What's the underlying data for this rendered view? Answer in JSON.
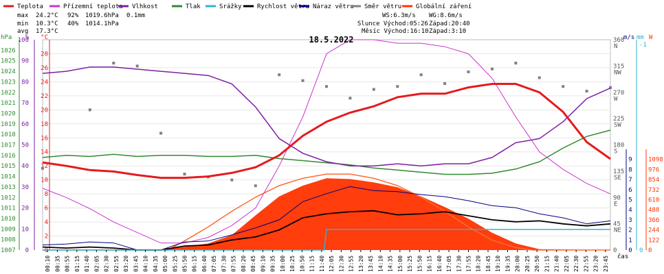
{
  "chart_data": {
    "type": "line",
    "title": "18.5.2022",
    "xlabel": "čas",
    "legend": [
      {
        "name": "Teplota",
        "color": "#e41a1c"
      },
      {
        "name": "Přízemní teplota",
        "color": "#cc33cc"
      },
      {
        "name": "Vlhkost",
        "color": "#7b1fa2"
      },
      {
        "name": "Tlak",
        "color": "#2e8b2e"
      },
      {
        "name": "Srážky",
        "color": "#2fb3d1"
      },
      {
        "name": "Rychlost větru",
        "color": "#000000"
      },
      {
        "name": "Náraz větru",
        "color": "#000080"
      },
      {
        "name": "Směr větru",
        "color": "#808080"
      },
      {
        "name": "Globální záření",
        "color": "#ff3300"
      }
    ],
    "stats": {
      "max": {
        "label": "max",
        "temp": "24.2°C",
        "hum": "92%",
        "press": "1019.6hPa",
        "rain": "0.1mm"
      },
      "min": {
        "label": "min",
        "temp": "10.3°C",
        "hum": "40%",
        "press": "1014.1hPa"
      },
      "avg": {
        "label": "avg",
        "temp": "17.3°C"
      }
    },
    "info": {
      "ws": "WS:6.3m/s",
      "wg": "WG:8.6m/s",
      "sun": "Slunce Východ:05:26",
      "sunset": "Západ:20:40",
      "moon": "Měsíc Východ:16:10",
      "moonset": "Západ:3:10"
    },
    "axes": {
      "press": {
        "label": "hPa",
        "ticks": [
          1007,
          1008,
          1009,
          1010,
          1011,
          1012,
          1013,
          1014,
          1015,
          1016,
          1017,
          1018,
          1019,
          1020,
          1021,
          1022,
          1023,
          1024,
          1025,
          1026
        ]
      },
      "hum": {
        "label": "%",
        "ticks": [
          0,
          10,
          20,
          30,
          40,
          50,
          60,
          70,
          80,
          90,
          100
        ]
      },
      "temp": {
        "label": "°C",
        "ticks": [
          0,
          2,
          4,
          6,
          8,
          10,
          12,
          14,
          16,
          18,
          20,
          22,
          24,
          26,
          28
        ]
      },
      "dir": {
        "ticks": [
          {
            "v": 0,
            "t": "0"
          },
          {
            "v": 45,
            "t": "45 NE"
          },
          {
            "v": 90,
            "t": "90 E"
          },
          {
            "v": 135,
            "t": "135 SE"
          },
          {
            "v": 180,
            "t": "180 S"
          },
          {
            "v": 225,
            "t": "225 SW"
          },
          {
            "v": 270,
            "t": "270 W"
          },
          {
            "v": 315,
            "t": "315 NW"
          },
          {
            "v": 360,
            "t": "360 N"
          }
        ]
      },
      "wind": {
        "label": "m/s",
        "ticks": [
          0,
          1,
          2,
          3,
          4,
          5,
          6,
          7,
          8,
          9
        ]
      },
      "rain": {
        "label": "mm",
        "ticks": [
          {
            "v": 0,
            "t": "0"
          },
          {
            "v": 1,
            "t": "-1"
          }
        ]
      },
      "rad": {
        "label": "W",
        "ticks": [
          0,
          122,
          244,
          366,
          488,
          610,
          732,
          854,
          976,
          1098
        ]
      }
    },
    "x_ticks": [
      "00:10",
      "00:35",
      "00:55",
      "01:15",
      "01:40",
      "02:05",
      "02:30",
      "02:55",
      "03:20",
      "03:45",
      "04:10",
      "04:35",
      "05:00",
      "05:25",
      "05:50",
      "06:15",
      "06:40",
      "07:05",
      "07:30",
      "07:55",
      "08:20",
      "08:45",
      "09:10",
      "09:35",
      "10:00",
      "10:25",
      "10:50",
      "11:15",
      "11:40",
      "12:05",
      "12:30",
      "12:55",
      "13:20",
      "13:45",
      "14:10",
      "14:35",
      "15:00",
      "15:25",
      "15:50",
      "16:15",
      "16:40",
      "17:05",
      "17:30",
      "17:55",
      "18:20",
      "18:45",
      "19:10",
      "19:35",
      "20:00",
      "20:25",
      "20:50",
      "21:15",
      "21:40",
      "22:05",
      "22:30",
      "22:55",
      "23:20",
      "23:45"
    ],
    "series": {
      "temp": {
        "x": [
          0,
          1,
          2,
          3,
          4,
          5,
          6,
          7,
          8,
          9,
          10,
          11,
          12,
          13,
          14,
          15,
          16,
          17,
          18,
          19,
          20,
          21,
          22,
          23,
          24
        ],
        "y": [
          12.5,
          12.0,
          11.4,
          11.2,
          10.7,
          10.3,
          10.3,
          10.5,
          11.0,
          11.8,
          13.5,
          16.3,
          18.3,
          19.6,
          20.5,
          21.8,
          22.3,
          22.3,
          23.2,
          23.7,
          23.7,
          22.5,
          19.7,
          15.4,
          13.0
        ]
      },
      "dew": {
        "x": [
          0,
          1,
          2,
          3,
          4,
          5,
          6,
          7,
          8,
          9,
          10,
          11,
          12,
          13,
          14,
          15,
          16,
          17,
          18,
          19,
          20,
          21,
          22,
          23,
          24
        ],
        "y": [
          8.8,
          7.5,
          5.9,
          4.0,
          2.5,
          1.0,
          1.0,
          1.8,
          3.5,
          6.0,
          12.0,
          19.0,
          28.0,
          30.0,
          30.0,
          29.5,
          29.5,
          29.0,
          28.0,
          24.5,
          19.0,
          14.0,
          11.5,
          9.5,
          8.0
        ]
      },
      "hum": {
        "x": [
          0,
          1,
          2,
          3,
          4,
          5,
          6,
          7,
          8,
          9,
          10,
          11,
          12,
          13,
          14,
          15,
          16,
          17,
          18,
          19,
          20,
          21,
          22,
          23,
          24
        ],
        "y": [
          84,
          85,
          87,
          87,
          86,
          85,
          84,
          83,
          79,
          68,
          53,
          46,
          42,
          40,
          40,
          41,
          40,
          41,
          41,
          44,
          51,
          53,
          61,
          72,
          77
        ]
      },
      "press": {
        "x": [
          0,
          1,
          2,
          3,
          4,
          5,
          6,
          7,
          8,
          9,
          10,
          11,
          12,
          13,
          14,
          15,
          16,
          17,
          18,
          19,
          20,
          21,
          22,
          23,
          24
        ],
        "y": [
          1015.8,
          1016.0,
          1015.9,
          1016.1,
          1015.9,
          1016.0,
          1016.0,
          1015.9,
          1015.9,
          1016.0,
          1015.7,
          1015.5,
          1015.3,
          1015.1,
          1014.8,
          1014.6,
          1014.4,
          1014.2,
          1014.2,
          1014.3,
          1014.7,
          1015.4,
          1016.7,
          1017.8,
          1018.4
        ]
      },
      "wind": {
        "x": [
          0,
          1,
          2,
          3,
          4,
          5,
          6,
          7,
          8,
          9,
          10,
          11,
          12,
          13,
          14,
          15,
          16,
          17,
          18,
          19,
          20,
          21,
          22,
          23,
          24
        ],
        "y": [
          0.3,
          0.2,
          0.3,
          0.2,
          0.0,
          0.0,
          0.4,
          0.5,
          1.0,
          1.3,
          2.0,
          3.2,
          3.6,
          3.8,
          3.9,
          3.5,
          3.6,
          3.8,
          3.4,
          3.0,
          2.8,
          2.9,
          2.6,
          2.4,
          2.6
        ]
      },
      "gust": {
        "x": [
          0,
          1,
          2,
          3,
          4,
          5,
          6,
          7,
          8,
          9,
          10,
          11,
          12,
          13,
          14,
          15,
          16,
          17,
          18,
          19,
          20,
          21,
          22,
          23,
          24
        ],
        "y": [
          0.5,
          0.6,
          0.8,
          0.7,
          0.0,
          0.0,
          0.8,
          0.9,
          1.5,
          2.2,
          3.0,
          4.8,
          5.6,
          6.3,
          5.9,
          5.8,
          5.5,
          5.3,
          4.9,
          4.4,
          4.2,
          3.6,
          3.2,
          2.6,
          2.9
        ]
      },
      "radiation": {
        "x": [
          0,
          5,
          6,
          7,
          8,
          9,
          10,
          11,
          12,
          13,
          14,
          15,
          16,
          17,
          18,
          19,
          20,
          21,
          24
        ],
        "y": [
          0,
          0,
          40,
          80,
          180,
          420,
          650,
          780,
          870,
          860,
          820,
          760,
          650,
          520,
          380,
          210,
          80,
          10,
          0
        ]
      },
      "radiation_clear": {
        "x": [
          0,
          5.3,
          6,
          7,
          8,
          9,
          10,
          11,
          12,
          13,
          14,
          15,
          16,
          17,
          18,
          19,
          20,
          20.7,
          24
        ],
        "y": [
          0,
          0,
          110,
          280,
          470,
          640,
          780,
          870,
          920,
          920,
          870,
          780,
          640,
          470,
          280,
          120,
          30,
          0,
          0
        ]
      },
      "rain_cum": {
        "x": [
          0,
          11.9,
          12,
          24
        ],
        "y": [
          0,
          0,
          0.1,
          0.1
        ]
      },
      "wind_dir": {
        "x": [
          0,
          2,
          3,
          4,
          5,
          6,
          7,
          8,
          9,
          10,
          11,
          12,
          13,
          14,
          15,
          16,
          17,
          18,
          19,
          20,
          21,
          22,
          23,
          24
        ],
        "y": [
          140,
          240,
          320,
          315,
          200,
          130,
          125,
          120,
          110,
          300,
          290,
          280,
          260,
          275,
          280,
          300,
          285,
          305,
          310,
          320,
          295,
          280,
          272,
          278
        ]
      }
    }
  }
}
